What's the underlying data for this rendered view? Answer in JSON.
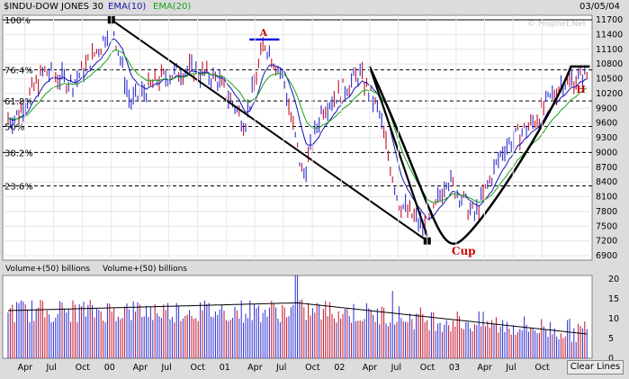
{
  "header": {
    "symbol": "$INDU-DOW JONES 30",
    "ema10_label": "EMA(10)",
    "ema20_label": "EMA(20)",
    "date": "03/05/04",
    "watermark": "© Prophet.Net"
  },
  "toolbar": {
    "clear_lines_label": "Clear Lines"
  },
  "colors": {
    "background": "#ffffff",
    "frame": "#dcdcdc",
    "price": "#2b2bd1",
    "down_bar": "#c0102a",
    "ema10": "#1414b4",
    "ema20": "#1aa01a",
    "annotation": "#000000",
    "annotation_text": "#cc0000"
  },
  "chart_data": [
    {
      "type": "line",
      "title": "$INDU-DOW JONES 30",
      "series": [
        {
          "name": "EMA(10)",
          "values": []
        },
        {
          "name": "EMA(20)",
          "values": []
        }
      ],
      "price_path": {
        "x": [
          "1999-03",
          "1999-06",
          "1999-09",
          "1999-12",
          "2000-01",
          "2000-03",
          "2000-06",
          "2000-09",
          "2000-12",
          "2001-03",
          "2001-05",
          "2001-07",
          "2001-09",
          "2001-11",
          "2002-03",
          "2002-05",
          "2002-07",
          "2002-10",
          "2002-12",
          "2003-03",
          "2003-06",
          "2003-09",
          "2003-12",
          "2004-03"
        ],
        "y": [
          9700,
          10650,
          10400,
          11200,
          11700,
          10000,
          10500,
          10700,
          10500,
          9600,
          11250,
          10500,
          8500,
          9900,
          10600,
          9800,
          8000,
          7400,
          8500,
          7700,
          9100,
          9600,
          10400,
          10600
        ]
      },
      "ylim": [
        6900,
        11700
      ],
      "yticks": [
        6900,
        7200,
        7500,
        7800,
        8100,
        8400,
        8700,
        9000,
        9300,
        9600,
        9900,
        10200,
        10500,
        10800,
        11100,
        11400,
        11700
      ],
      "xticks": [
        "Apr",
        "Jul",
        "Oct",
        "00",
        "Apr",
        "Jul",
        "Oct",
        "01",
        "Apr",
        "Jul",
        "Oct",
        "02",
        "Apr",
        "Jul",
        "Oct",
        "03",
        "Apr",
        "Jul",
        "Oct"
      ],
      "fib_levels": [
        {
          "label": "100%",
          "value": 11700
        },
        {
          "label": "76.4%",
          "value": 10680
        },
        {
          "label": "61.8%",
          "value": 10050
        },
        {
          "label": "50%",
          "value": 9530
        },
        {
          "label": "38.2%",
          "value": 9000
        },
        {
          "label": "23.6%",
          "value": 8320
        }
      ],
      "annotations": [
        {
          "text": "A",
          "x": "2001-05",
          "y": 11300
        },
        {
          "text": "Cup",
          "x": "2003-01",
          "y": 7100
        },
        {
          "text": "H",
          "x": "2004-02",
          "y": 10400
        }
      ],
      "trendline": {
        "from": {
          "x": "2000-01",
          "y": 11700
        },
        "to": {
          "x": "2002-10",
          "y": 7200
        }
      }
    },
    {
      "type": "bar",
      "series": [
        {
          "name": "Volume+(50) billions",
          "values": []
        },
        {
          "name": "Volume+(50) billions",
          "values": []
        }
      ],
      "ylim": [
        0,
        20
      ],
      "yticks": [
        0,
        5,
        10,
        15,
        20
      ],
      "xticks": [
        "Apr",
        "Jul",
        "Oct",
        "00",
        "Apr",
        "Jul",
        "Oct",
        "01",
        "Apr",
        "Jul",
        "Oct",
        "02",
        "Apr",
        "Jul",
        "Oct",
        "03",
        "Apr",
        "Jul",
        "Oct"
      ]
    }
  ]
}
